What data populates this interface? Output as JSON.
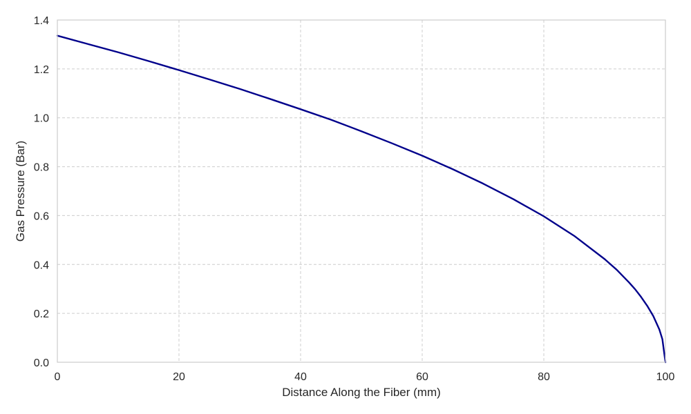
{
  "chart_data": {
    "type": "line",
    "title": "",
    "xlabel": "Distance Along the Fiber (mm)",
    "ylabel": "Gas Pressure (Bar)",
    "xlim": [
      0,
      100
    ],
    "ylim": [
      0,
      1.4
    ],
    "xticks": [
      0,
      20,
      40,
      60,
      80,
      100
    ],
    "xtick_labels": [
      "0",
      "20",
      "40",
      "60",
      "80",
      "100"
    ],
    "yticks": [
      0,
      0.2,
      0.4,
      0.6,
      0.8,
      1.0,
      1.2,
      1.4
    ],
    "ytick_labels": [
      "0.0",
      "0.2",
      "0.4",
      "0.6",
      "0.8",
      "1.0",
      "1.2",
      "1.4"
    ],
    "grid": true,
    "series": [
      {
        "color": "#00008b",
        "x": [
          0,
          5,
          10,
          15,
          20,
          25,
          30,
          35,
          40,
          45,
          50,
          55,
          60,
          65,
          70,
          75,
          80,
          85,
          90,
          92,
          94,
          95,
          96,
          97,
          98,
          99,
          99.5,
          100
        ],
        "y": [
          1.336,
          1.302,
          1.268,
          1.232,
          1.195,
          1.157,
          1.118,
          1.077,
          1.035,
          0.992,
          0.945,
          0.896,
          0.845,
          0.79,
          0.731,
          0.667,
          0.597,
          0.517,
          0.422,
          0.378,
          0.327,
          0.299,
          0.267,
          0.231,
          0.189,
          0.134,
          0.094,
          0.0
        ]
      }
    ]
  }
}
